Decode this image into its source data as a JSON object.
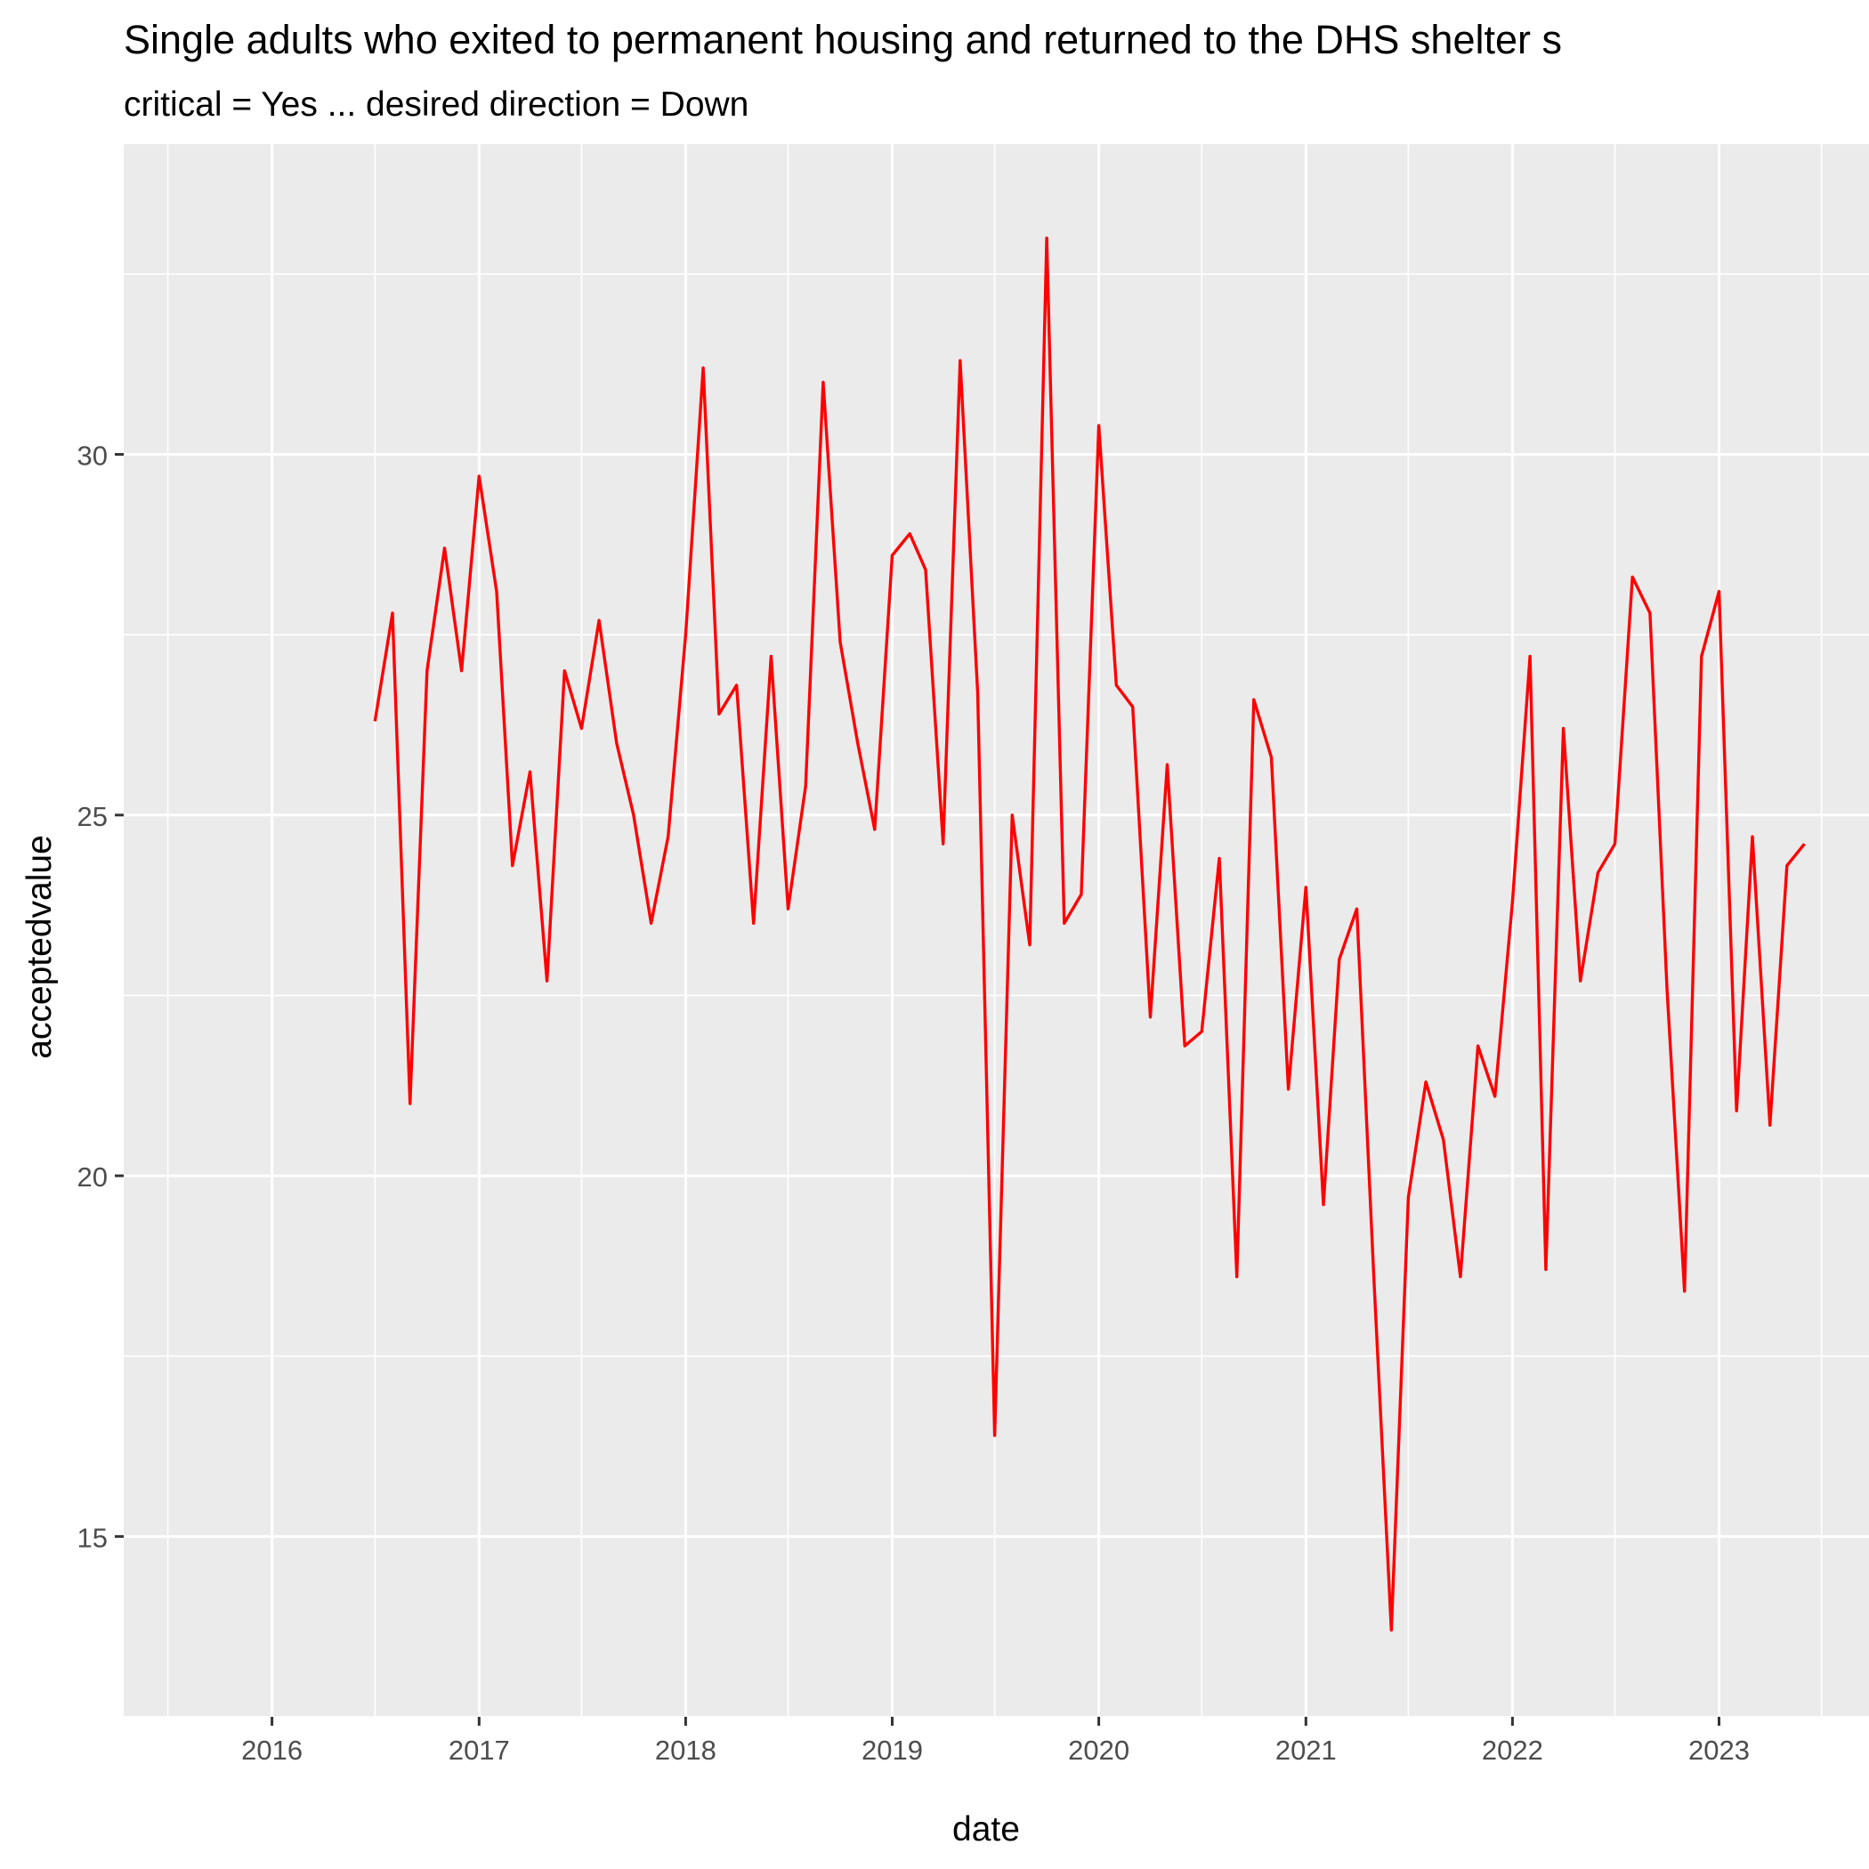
{
  "chart_data": {
    "type": "line",
    "title": "Single adults who exited to permanent housing and returned to the DHS shelter s",
    "subtitle": "critical = Yes ... desired direction = Down",
    "xlabel": "date",
    "ylabel": "acceptedvalue",
    "xlim": [
      "2015-04-14",
      "2023-09-23"
    ],
    "ylim": [
      12.5,
      34.3
    ],
    "x_ticks": [
      {
        "date": "2016-01-01",
        "label": "2016"
      },
      {
        "date": "2017-01-01",
        "label": "2017"
      },
      {
        "date": "2018-01-01",
        "label": "2018"
      },
      {
        "date": "2019-01-01",
        "label": "2019"
      },
      {
        "date": "2020-01-01",
        "label": "2020"
      },
      {
        "date": "2021-01-01",
        "label": "2021"
      },
      {
        "date": "2022-01-01",
        "label": "2022"
      },
      {
        "date": "2023-01-01",
        "label": "2023"
      }
    ],
    "x_minor_ticks": [
      "2015-07-01",
      "2016-07-01",
      "2017-07-01",
      "2018-07-01",
      "2019-07-01",
      "2020-07-01",
      "2021-07-01",
      "2022-07-01",
      "2023-07-01"
    ],
    "y_ticks": [
      15,
      20,
      25,
      30
    ],
    "y_minor_ticks": [
      12.5,
      17.5,
      22.5,
      27.5,
      32.5
    ],
    "grid": true,
    "colors": {
      "line": "#ff0000",
      "panel": "#ebebeb",
      "grid": "#ffffff"
    },
    "series": [
      {
        "x": [
          "2016-07-01",
          "2016-08-01",
          "2016-09-01",
          "2016-10-01",
          "2016-11-01",
          "2016-12-01",
          "2017-01-01",
          "2017-02-01",
          "2017-03-01",
          "2017-04-01",
          "2017-05-01",
          "2017-06-01",
          "2017-07-01",
          "2017-08-01",
          "2017-09-01",
          "2017-10-01",
          "2017-11-01",
          "2017-12-01",
          "2018-01-01",
          "2018-02-01",
          "2018-03-01",
          "2018-04-01",
          "2018-05-01",
          "2018-06-01",
          "2018-07-01",
          "2018-08-01",
          "2018-09-01",
          "2018-10-01",
          "2018-11-01",
          "2018-12-01",
          "2019-01-01",
          "2019-02-01",
          "2019-03-01",
          "2019-04-01",
          "2019-05-01",
          "2019-06-01",
          "2019-07-01",
          "2019-08-01",
          "2019-09-01",
          "2019-10-01",
          "2019-11-01",
          "2019-12-01",
          "2020-01-01",
          "2020-02-01",
          "2020-03-01",
          "2020-04-01",
          "2020-05-01",
          "2020-06-01",
          "2020-07-01",
          "2020-08-01",
          "2020-09-01",
          "2020-10-01",
          "2020-11-01",
          "2020-12-01",
          "2021-01-01",
          "2021-02-01",
          "2021-03-01",
          "2021-04-01",
          "2021-05-01",
          "2021-06-01",
          "2021-07-01",
          "2021-08-01",
          "2021-09-01",
          "2021-10-01",
          "2021-11-01",
          "2021-12-01",
          "2022-01-01",
          "2022-02-01",
          "2022-03-01",
          "2022-04-01",
          "2022-05-01",
          "2022-06-01",
          "2022-07-01",
          "2022-08-01",
          "2022-09-01",
          "2022-10-01",
          "2022-11-01",
          "2022-12-01",
          "2023-01-01",
          "2023-02-01",
          "2023-03-01",
          "2023-04-01",
          "2023-05-01",
          "2023-06-01"
        ],
        "values": [
          26.3,
          27.8,
          21.0,
          27.0,
          28.7,
          27.0,
          29.7,
          28.1,
          24.3,
          25.6,
          22.7,
          27.0,
          26.2,
          27.7,
          26.0,
          25.0,
          23.5,
          24.7,
          27.5,
          31.2,
          26.4,
          26.8,
          23.5,
          27.2,
          23.7,
          25.4,
          31.0,
          27.4,
          26.0,
          24.8,
          28.6,
          28.9,
          28.4,
          24.6,
          31.3,
          26.7,
          16.4,
          25.0,
          23.2,
          33.0,
          23.5,
          23.9,
          30.4,
          26.8,
          26.5,
          22.2,
          25.7,
          21.8,
          22.0,
          24.4,
          18.6,
          26.6,
          25.8,
          21.2,
          24.0,
          19.6,
          23.0,
          23.7,
          18.6,
          13.7,
          19.7,
          21.3,
          20.5,
          18.6,
          21.8,
          21.1,
          23.8,
          27.2,
          18.7,
          26.2,
          22.7,
          24.2,
          24.6,
          28.3,
          27.8,
          22.6,
          18.4,
          27.2,
          28.1,
          20.9,
          24.7,
          20.7,
          24.3,
          24.6
        ]
      }
    ]
  }
}
